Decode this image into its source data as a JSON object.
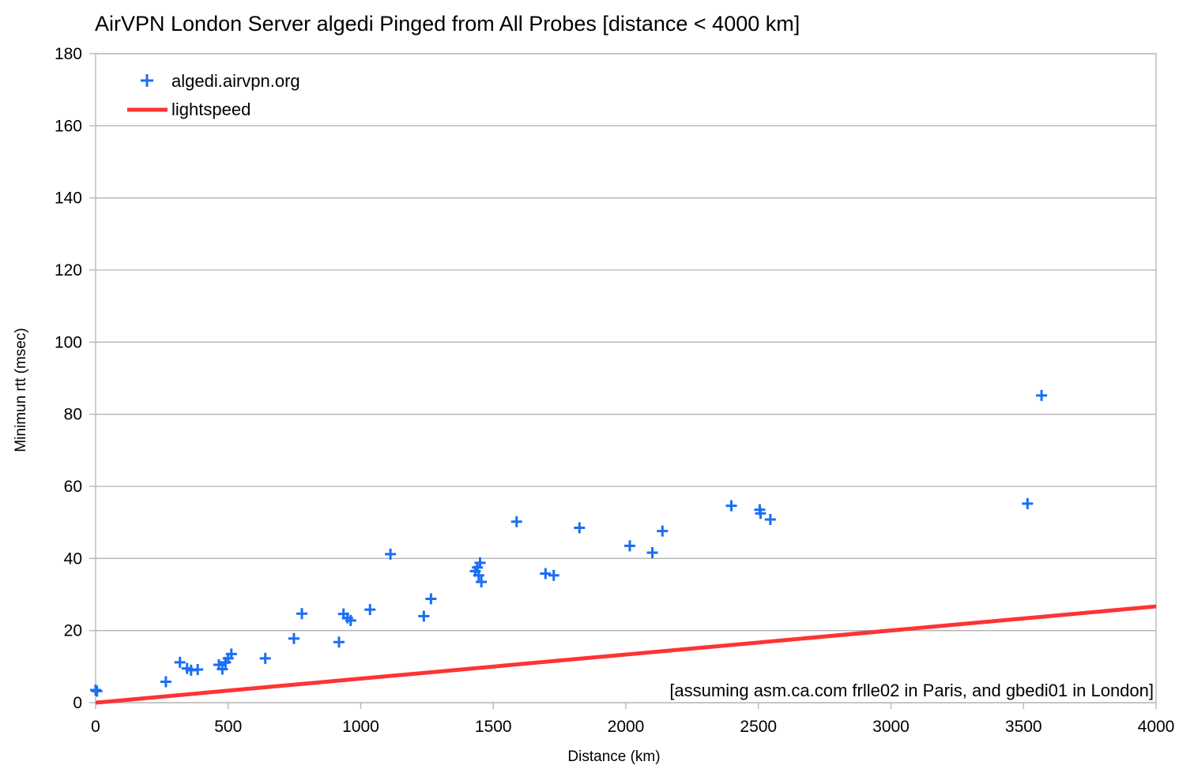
{
  "chart_data": {
    "type": "scatter",
    "title": "AirVPN London Server algedi Pinged from All Probes [distance < 4000 km]",
    "xlabel": "Distance (km)",
    "ylabel": "Minimun rtt (msec)",
    "xlim": [
      0,
      4000
    ],
    "ylim": [
      0,
      180
    ],
    "xticks": [
      0,
      500,
      1000,
      1500,
      2000,
      2500,
      3000,
      3500,
      4000
    ],
    "yticks": [
      0,
      20,
      40,
      60,
      80,
      100,
      120,
      140,
      160,
      180
    ],
    "grid": "horizontal",
    "legend_position": "top-left",
    "annotation": "[assuming asm.ca.com frlle02 in Paris, and gbedi01 in London]",
    "series": [
      {
        "name": "algedi.airvpn.org",
        "kind": "scatter",
        "marker": "plus",
        "color": "#1a6ef5",
        "points": [
          [
            0,
            3.5
          ],
          [
            5,
            3.2
          ],
          [
            265,
            5.8
          ],
          [
            318,
            11.2
          ],
          [
            345,
            9.5
          ],
          [
            360,
            9.0
          ],
          [
            385,
            9.2
          ],
          [
            465,
            10.5
          ],
          [
            478,
            9.3
          ],
          [
            490,
            11.2
          ],
          [
            500,
            12.3
          ],
          [
            512,
            13.5
          ],
          [
            640,
            12.3
          ],
          [
            748,
            17.8
          ],
          [
            778,
            24.7
          ],
          [
            918,
            16.8
          ],
          [
            935,
            24.6
          ],
          [
            950,
            23.5
          ],
          [
            962,
            22.8
          ],
          [
            1035,
            25.8
          ],
          [
            1112,
            41.2
          ],
          [
            1238,
            24.0
          ],
          [
            1265,
            28.8
          ],
          [
            1432,
            36.5
          ],
          [
            1440,
            37.5
          ],
          [
            1445,
            35.3
          ],
          [
            1450,
            38.8
          ],
          [
            1455,
            33.5
          ],
          [
            1588,
            50.2
          ],
          [
            1697,
            35.8
          ],
          [
            1728,
            35.3
          ],
          [
            1825,
            48.5
          ],
          [
            2015,
            43.5
          ],
          [
            2100,
            41.6
          ],
          [
            2138,
            47.6
          ],
          [
            2398,
            54.6
          ],
          [
            2505,
            53.5
          ],
          [
            2508,
            52.5
          ],
          [
            2545,
            50.8
          ],
          [
            3515,
            55.2
          ],
          [
            3568,
            85.2
          ]
        ]
      },
      {
        "name": "lightspeed",
        "kind": "line",
        "color": "#ff3333",
        "points": [
          [
            0,
            0
          ],
          [
            4000,
            26.7
          ]
        ]
      }
    ]
  }
}
